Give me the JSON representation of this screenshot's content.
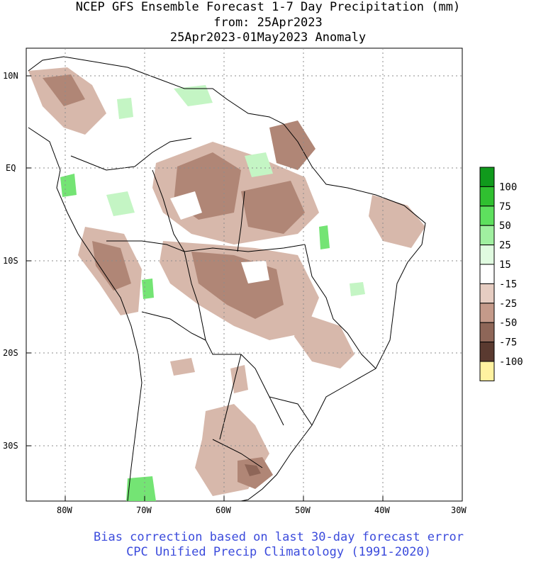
{
  "header": {
    "line1": "NCEP GFS Ensemble Forecast 1-7 Day Precipitation (mm)",
    "line2": "from: 25Apr2023",
    "line3": "25Apr2023-01May2023 Anomaly"
  },
  "axes": {
    "lat_labels": [
      "10N",
      "EQ",
      "10S",
      "20S",
      "30S"
    ],
    "lon_labels": [
      "80W",
      "70W",
      "60W",
      "50W",
      "40W",
      "30W"
    ]
  },
  "legend": {
    "labels": [
      "100",
      "75",
      "50",
      "25",
      "15",
      "-15",
      "-25",
      "-50",
      "-75",
      "-100"
    ],
    "colors": [
      "#109a1c",
      "#30c030",
      "#5ee05e",
      "#a0f0a0",
      "#e0fbe0",
      "#ffffff",
      "#e6cdc2",
      "#c49a8a",
      "#8e6658",
      "#5a3a30",
      "#fff2a0"
    ]
  },
  "footer": {
    "line1": "Bias correction based on last 30-day forecast error",
    "line2": "CPC Unified Precip Climatology (1991-2020)"
  },
  "palette": {
    "dry_light": "#d7b8ab",
    "dry_mid": "#b08676",
    "dry_dark": "#8e6658",
    "wet_light": "#c4f5c4",
    "wet_mid": "#74e474",
    "footer_text": "#3b4bdc"
  }
}
